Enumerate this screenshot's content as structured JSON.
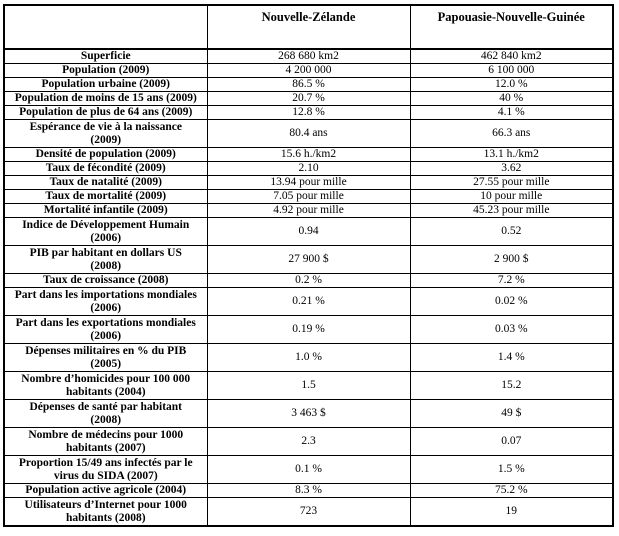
{
  "colors": {
    "background": "#ffffff",
    "border": "#000000",
    "text": "#000000"
  },
  "table": {
    "columns": [
      "",
      "Nouvelle-Zélande",
      "Papouasie-Nouvelle-Guinée"
    ],
    "rows": [
      {
        "label": "Superficie",
        "nz": "268 680 km2",
        "png": "462 840 km2"
      },
      {
        "label": "Population (2009)",
        "nz": "4 200 000",
        "png": "6 100 000"
      },
      {
        "label": "Population urbaine (2009)",
        "nz": "86.5 %",
        "png": "12.0 %"
      },
      {
        "label": "Population de moins de 15 ans (2009)",
        "nz": "20.7 %",
        "png": "40 %"
      },
      {
        "label": "Population de plus de 64 ans (2009)",
        "nz": "12.8 %",
        "png": "4.1 %"
      },
      {
        "label": "Espérance de vie à la naissance\n(2009)",
        "nz": "80.4 ans",
        "png": "66.3 ans"
      },
      {
        "label": "Densité de population (2009)",
        "nz": "15.6 h./km2",
        "png": "13.1 h./km2"
      },
      {
        "label": "Taux de fécondité (2009)",
        "nz": "2.10",
        "png": "3.62"
      },
      {
        "label": "Taux de natalité (2009)",
        "nz": "13.94 pour mille",
        "png": "27.55 pour mille"
      },
      {
        "label": "Taux de mortalité (2009)",
        "nz": "7.05 pour mille",
        "png": "10 pour mille"
      },
      {
        "label": "Mortalité infantile (2009)",
        "nz": "4.92 pour mille",
        "png": "45.23 pour mille"
      },
      {
        "label": "Indice de Développement Humain\n(2006)",
        "nz": "0.94",
        "png": "0.52"
      },
      {
        "label": "PIB par habitant en dollars US\n(2008)",
        "nz": "27 900 $",
        "png": "2 900 $"
      },
      {
        "label": "Taux de croissance (2008)",
        "nz": "0.2 %",
        "png": "7.2 %"
      },
      {
        "label": "Part dans les importations mondiales\n(2006)",
        "nz": "0.21 %",
        "png": "0.02 %"
      },
      {
        "label": "Part dans les exportations mondiales\n(2006)",
        "nz": "0.19 %",
        "png": "0.03 %"
      },
      {
        "label": "Dépenses militaires en % du PIB\n(2005)",
        "nz": "1.0 %",
        "png": "1.4 %"
      },
      {
        "label": "Nombre d’homicides pour 100 000\nhabitants (2004)",
        "nz": "1.5",
        "png": "15.2"
      },
      {
        "label": "Dépenses de santé par habitant\n(2008)",
        "nz": "3 463 $",
        "png": "49 $"
      },
      {
        "label": "Nombre de médecins pour 1000\nhabitants (2007)",
        "nz": "2.3",
        "png": "0.07"
      },
      {
        "label": "Proportion 15/49 ans infectés par le\nvirus du SIDA (2007)",
        "nz": "0.1 %",
        "png": "1.5 %"
      },
      {
        "label": "Population active agricole (2004)",
        "nz": "8.3 %",
        "png": "75.2 %"
      },
      {
        "label": "Utilisateurs d’Internet pour 1000\nhabitants (2008)",
        "nz": "723",
        "png": "19"
      }
    ]
  }
}
